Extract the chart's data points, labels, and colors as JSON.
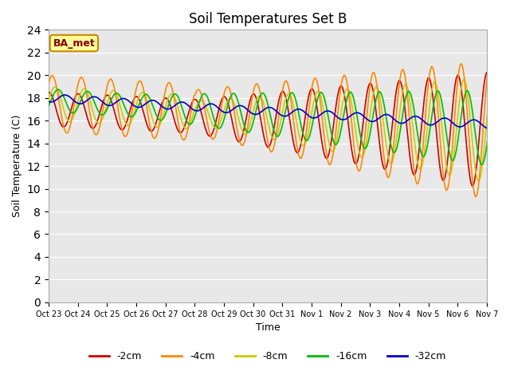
{
  "title": "Soil Temperatures Set B",
  "xlabel": "Time",
  "ylabel": "Soil Temperature (C)",
  "ylim": [
    0,
    24
  ],
  "xtick_labels": [
    "Oct 23",
    "Oct 24",
    "Oct 25",
    "Oct 26",
    "Oct 27",
    "Oct 28",
    "Oct 29",
    "Oct 30",
    "Oct 31",
    "Nov 1",
    "Nov 2",
    "Nov 3",
    "Nov 4",
    "Nov 5",
    "Nov 6",
    "Nov 7"
  ],
  "bg_color": "#e8e8e8",
  "fig_color": "#ffffff",
  "series_colors": {
    "-2cm": "#cc0000",
    "-4cm": "#ff8800",
    "-8cm": "#cccc00",
    "-16cm": "#00bb00",
    "-32cm": "#0000cc"
  },
  "annotation_text": "BA_met",
  "annotation_bg": "#ffff99",
  "annotation_border": "#cc8800"
}
